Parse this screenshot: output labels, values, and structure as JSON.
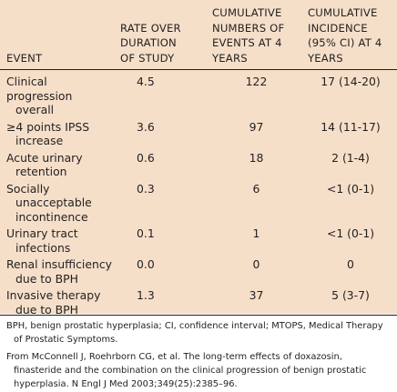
{
  "table": {
    "headers": {
      "event": "EVENT",
      "rate": [
        "RATE OVER",
        "DURATION",
        "OF STUDY"
      ],
      "cumulative_numbers": [
        "CUMULATIVE",
        "NUMBERS OF",
        "EVENTS AT 4",
        "YEARS"
      ],
      "cumulative_incidence": [
        "CUMULATIVE",
        "INCIDENCE",
        "(95% CI) AT 4",
        "YEARS"
      ]
    },
    "rows": [
      {
        "event_line1": "Clinical progression",
        "event_line2": "overall",
        "rate": "4.5",
        "number": "122",
        "incidence": "17 (14-20)"
      },
      {
        "event_line1": "≥4 points IPSS",
        "event_line2": "increase",
        "rate": "3.6",
        "number": "97",
        "incidence": "14 (11-17)"
      },
      {
        "event_line1": "Acute urinary",
        "event_line2": "retention",
        "rate": "0.6",
        "number": "18",
        "incidence": "2 (1-4)"
      },
      {
        "event_line1": "Socially",
        "event_line2": "unacceptable",
        "event_line3": "incontinence",
        "rate": "0.3",
        "number": "6",
        "incidence": "<1 (0-1)"
      },
      {
        "event_line1": "Urinary tract",
        "event_line2": "infections",
        "rate": "0.1",
        "number": "1",
        "incidence": "<1 (0-1)"
      },
      {
        "event_line1": "Renal insufficiency",
        "event_line2": "due to BPH",
        "rate": "0.0",
        "number": "0",
        "incidence": "0"
      },
      {
        "event_line1": "Invasive therapy",
        "event_line2": "due to BPH",
        "rate": "1.3",
        "number": "37",
        "incidence": "5 (3-7)"
      }
    ]
  },
  "footnotes": {
    "abbreviations": "BPH, benign prostatic hyperplasia; CI, confidence interval; MTOPS, Medical Therapy of Prostatic Symptoms.",
    "source": "From McConnell J, Roehrborn CG, et al. The long-term effects of doxazosin, finasteride and the combination on the clinical progression of benign prostatic hyperplasia. N Engl J Med 2003;349(25):2385–96."
  },
  "colors": {
    "panel_background": "#f5dfc9",
    "text": "#231f20"
  }
}
